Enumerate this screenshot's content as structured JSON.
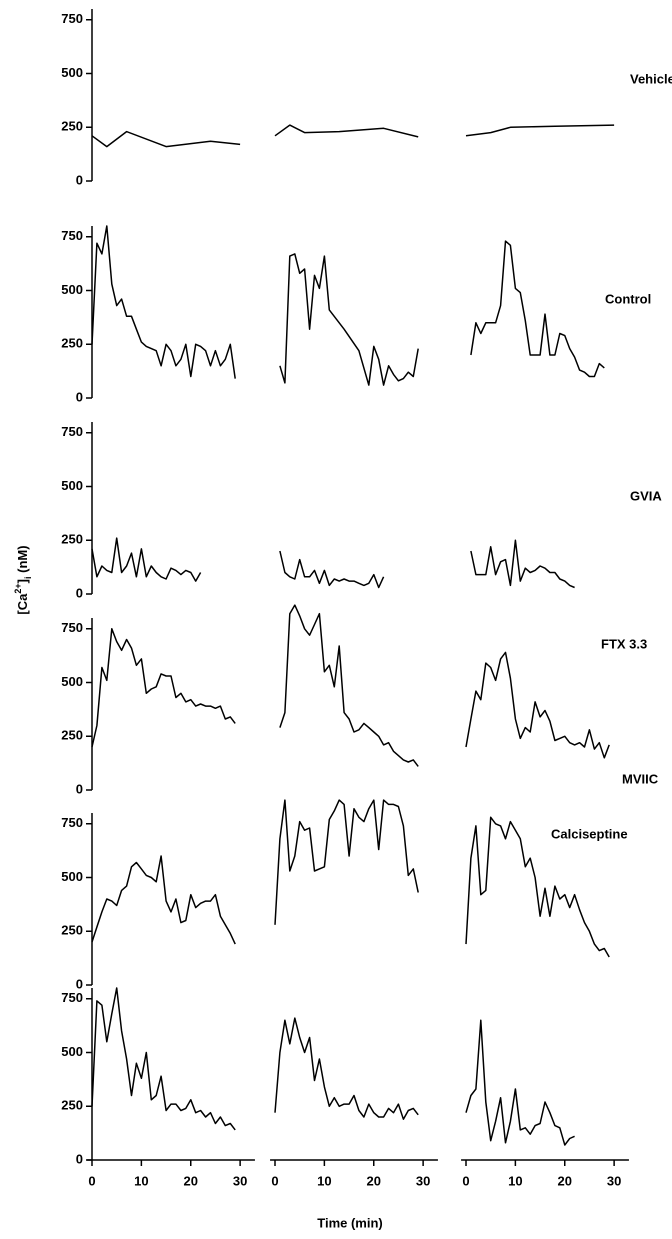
{
  "chart_data": {
    "type": "line",
    "color": "#000000",
    "x_label": "Time (min)",
    "y_label": [
      {
        "text": "[Ca"
      },
      {
        "text": "2+",
        "style": "sup"
      },
      {
        "text": "]"
      },
      {
        "text": "i",
        "style": "sub"
      },
      {
        "text": " (nM)"
      }
    ],
    "xlim": [
      0,
      32
    ],
    "xticks": [
      0,
      10,
      20,
      30
    ],
    "ylim": [
      0,
      800
    ],
    "yticks": [
      0,
      250,
      500,
      750
    ],
    "panels": [
      {
        "label": "Vehicle",
        "traces": [
          {
            "x": [
              0,
              3,
              7,
              15,
              24,
              30
            ],
            "values": [
              210,
              160,
              230,
              160,
              185,
              170
            ]
          },
          {
            "x": [
              0,
              3,
              6,
              13,
              22,
              29
            ],
            "values": [
              210,
              260,
              225,
              230,
              245,
              205
            ]
          },
          {
            "x": [
              0,
              5,
              9,
              18,
              30
            ],
            "values": [
              210,
              225,
              250,
              255,
              260
            ]
          }
        ]
      },
      {
        "label": "Control",
        "traces": [
          {
            "x": [
              0,
              1,
              2,
              3,
              4,
              5,
              6,
              7,
              8,
              9,
              10,
              11,
              12,
              13,
              14,
              15,
              16,
              17,
              18,
              19,
              20,
              21,
              22,
              23,
              24,
              25,
              26,
              27,
              28,
              29
            ],
            "values": [
              250,
              720,
              670,
              800,
              530,
              430,
              460,
              380,
              380,
              320,
              260,
              240,
              230,
              220,
              150,
              250,
              220,
              150,
              180,
              250,
              100,
              250,
              240,
              220,
              150,
              220,
              150,
              180,
              250,
              90
            ]
          },
          {
            "x": [
              1,
              2,
              3,
              4,
              5,
              6,
              7,
              8,
              9,
              10,
              11,
              14,
              17,
              19,
              20,
              21,
              22,
              23,
              24,
              25,
              26,
              27,
              28,
              29
            ],
            "values": [
              150,
              70,
              660,
              670,
              580,
              600,
              320,
              570,
              510,
              660,
              410,
              320,
              220,
              60,
              240,
              180,
              60,
              150,
              110,
              80,
              90,
              120,
              100,
              230
            ]
          },
          {
            "x": [
              1,
              2,
              3,
              4,
              5,
              6,
              7,
              8,
              9,
              10,
              11,
              12,
              13,
              14,
              15,
              16,
              17,
              18,
              19,
              20,
              21,
              22,
              23,
              24,
              25,
              26,
              27,
              28
            ],
            "values": [
              200,
              350,
              300,
              350,
              350,
              350,
              430,
              730,
              710,
              510,
              490,
              360,
              200,
              200,
              200,
              390,
              200,
              200,
              300,
              290,
              230,
              190,
              130,
              120,
              100,
              100,
              160,
              140
            ]
          }
        ]
      },
      {
        "label": "GVIA",
        "traces": [
          {
            "x": [
              0,
              1,
              2,
              3,
              4,
              5,
              6,
              7,
              8,
              9,
              10,
              11,
              12,
              13,
              14,
              15,
              16,
              17,
              18,
              19,
              20,
              21,
              22
            ],
            "values": [
              210,
              80,
              130,
              110,
              100,
              260,
              100,
              130,
              190,
              80,
              210,
              80,
              130,
              100,
              80,
              70,
              120,
              110,
              90,
              110,
              100,
              60,
              100
            ]
          },
          {
            "x": [
              1,
              2,
              3,
              4,
              5,
              6,
              7,
              8,
              9,
              10,
              11,
              12,
              13,
              14,
              15,
              16,
              17,
              18,
              19,
              20,
              21,
              22
            ],
            "values": [
              200,
              100,
              80,
              70,
              160,
              80,
              80,
              110,
              50,
              110,
              40,
              70,
              60,
              70,
              60,
              60,
              50,
              40,
              50,
              90,
              30,
              80
            ]
          },
          {
            "x": [
              1,
              2,
              3,
              4,
              5,
              6,
              7,
              8,
              9,
              10,
              11,
              12,
              13,
              14,
              15,
              16,
              17,
              18,
              19,
              20,
              21,
              22
            ],
            "values": [
              200,
              90,
              90,
              90,
              220,
              90,
              150,
              160,
              40,
              250,
              60,
              120,
              100,
              110,
              130,
              120,
              100,
              100,
              70,
              60,
              40,
              30
            ]
          }
        ]
      },
      {
        "label": "FTX 3.3",
        "traces": [
          {
            "x": [
              0,
              1,
              2,
              3,
              4,
              5,
              6,
              7,
              8,
              9,
              10,
              11,
              12,
              13,
              14,
              15,
              16,
              17,
              18,
              19,
              20,
              21,
              22,
              23,
              24,
              25,
              26,
              27,
              28,
              29
            ],
            "values": [
              200,
              300,
              570,
              510,
              750,
              690,
              650,
              700,
              660,
              580,
              610,
              450,
              470,
              480,
              540,
              530,
              530,
              430,
              450,
              410,
              420,
              390,
              400,
              390,
              390,
              380,
              390,
              330,
              340,
              310
            ]
          },
          {
            "x": [
              1,
              2,
              3,
              4,
              5,
              6,
              7,
              8,
              9,
              10,
              11,
              12,
              13,
              14,
              15,
              16,
              17,
              18,
              19,
              20,
              21,
              22,
              23,
              24,
              25,
              26,
              27,
              28,
              29
            ],
            "values": [
              290,
              360,
              820,
              860,
              810,
              750,
              720,
              770,
              820,
              550,
              580,
              480,
              670,
              360,
              330,
              270,
              280,
              310,
              290,
              270,
              250,
              210,
              220,
              180,
              160,
              140,
              130,
              140,
              110
            ]
          },
          {
            "x": [
              0,
              1,
              2,
              3,
              4,
              5,
              6,
              7,
              8,
              9,
              10,
              11,
              12,
              13,
              14,
              15,
              16,
              17,
              18,
              19,
              20,
              21,
              22,
              23,
              24,
              25,
              26,
              27,
              28,
              29
            ],
            "values": [
              200,
              330,
              460,
              420,
              590,
              570,
              510,
              610,
              640,
              520,
              330,
              240,
              290,
              270,
              410,
              340,
              370,
              320,
              230,
              240,
              250,
              220,
              210,
              220,
              200,
              280,
              190,
              220,
              150,
              210
            ]
          }
        ]
      },
      {
        "label": "Calciseptine",
        "traces": [
          {
            "x": [
              0,
              1,
              2,
              3,
              4,
              5,
              6,
              7,
              8,
              9,
              10,
              11,
              12,
              13,
              14,
              15,
              16,
              17,
              18,
              19,
              20,
              21,
              22,
              23,
              24,
              25,
              26,
              27,
              28,
              29
            ],
            "values": [
              200,
              270,
              340,
              400,
              390,
              370,
              440,
              460,
              550,
              570,
              540,
              510,
              500,
              480,
              600,
              390,
              340,
              400,
              290,
              300,
              420,
              360,
              380,
              390,
              390,
              420,
              320,
              280,
              240,
              190
            ]
          },
          {
            "x": [
              0,
              1,
              2,
              3,
              4,
              5,
              6,
              7,
              8,
              9,
              10,
              11,
              12,
              13,
              14,
              15,
              16,
              17,
              18,
              19,
              20,
              21,
              22,
              23,
              24,
              25,
              26,
              27,
              28,
              29
            ],
            "values": [
              280,
              680,
              860,
              530,
              600,
              760,
              720,
              730,
              530,
              540,
              550,
              770,
              810,
              860,
              840,
              600,
              820,
              780,
              760,
              820,
              860,
              630,
              860,
              840,
              840,
              830,
              740,
              510,
              540,
              430
            ]
          },
          {
            "x": [
              0,
              1,
              2,
              3,
              4,
              5,
              6,
              7,
              8,
              9,
              10,
              11,
              12,
              13,
              14,
              15,
              16,
              17,
              18,
              19,
              20,
              21,
              22,
              23,
              24,
              25,
              26,
              27,
              28,
              29
            ],
            "values": [
              190,
              590,
              740,
              420,
              440,
              780,
              750,
              740,
              680,
              760,
              720,
              680,
              550,
              590,
              500,
              320,
              450,
              320,
              460,
              400,
              420,
              360,
              420,
              350,
              290,
              250,
              190,
              160,
              170,
              130
            ]
          }
        ]
      },
      {
        "label": "MVIIC",
        "traces": [
          {
            "x": [
              0,
              1,
              2,
              3,
              4,
              5,
              6,
              7,
              8,
              9,
              10,
              11,
              12,
              13,
              14,
              15,
              16,
              17,
              18,
              19,
              20,
              21,
              22,
              23,
              24,
              25,
              26,
              27,
              28,
              29
            ],
            "values": [
              250,
              740,
              720,
              550,
              680,
              800,
              600,
              470,
              300,
              450,
              380,
              500,
              280,
              300,
              390,
              230,
              260,
              260,
              230,
              240,
              280,
              220,
              230,
              200,
              220,
              170,
              200,
              160,
              170,
              140
            ]
          },
          {
            "x": [
              0,
              1,
              2,
              3,
              4,
              5,
              6,
              7,
              8,
              9,
              10,
              11,
              12,
              13,
              14,
              15,
              16,
              17,
              18,
              19,
              20,
              21,
              22,
              23,
              24,
              25,
              26,
              27,
              28,
              29
            ],
            "values": [
              220,
              500,
              650,
              540,
              660,
              570,
              500,
              570,
              370,
              470,
              340,
              250,
              290,
              250,
              260,
              260,
              300,
              230,
              200,
              260,
              220,
              200,
              200,
              240,
              220,
              260,
              190,
              230,
              240,
              210
            ]
          },
          {
            "x": [
              0,
              1,
              2,
              3,
              4,
              5,
              6,
              7,
              8,
              9,
              10,
              11,
              12,
              13,
              14,
              15,
              16,
              17,
              18,
              19,
              20,
              21,
              22
            ],
            "values": [
              220,
              300,
              330,
              650,
              270,
              90,
              180,
              290,
              80,
              180,
              330,
              140,
              150,
              120,
              160,
              170,
              270,
              220,
              160,
              150,
              70,
              100,
              110
            ]
          }
        ]
      }
    ]
  }
}
